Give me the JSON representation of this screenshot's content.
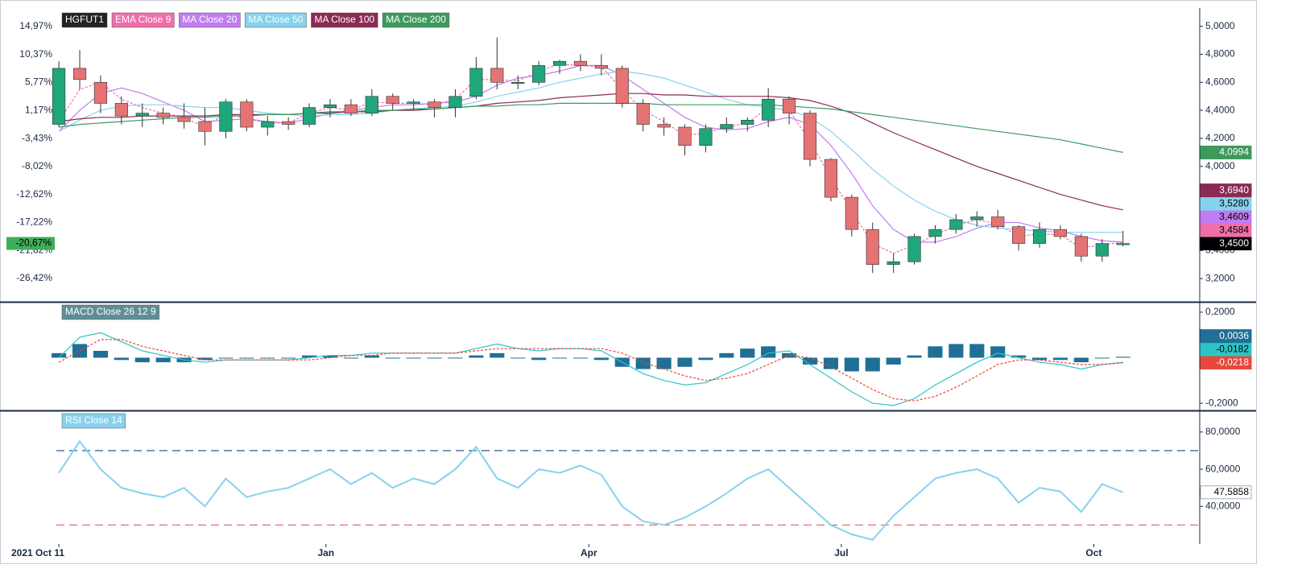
{
  "chart_data": [
    {
      "type": "candlestick",
      "name": "HGFUT1",
      "name_color": "#222222",
      "up_color": "#1fa67a",
      "down_color": "#e57373",
      "open": [
        4.3,
        4.7,
        4.6,
        4.45,
        4.36,
        4.38,
        4.35,
        4.32,
        4.25,
        4.46,
        4.28,
        4.32,
        4.3,
        4.42,
        4.44,
        4.38,
        4.5,
        4.45,
        4.46,
        4.42,
        4.5,
        4.7,
        4.6,
        4.6,
        4.72,
        4.75,
        4.72,
        4.7,
        4.45,
        4.3,
        4.28,
        4.15,
        4.27,
        4.3,
        4.33,
        4.48,
        4.38,
        4.05,
        3.78,
        3.55,
        3.3,
        3.32,
        3.5,
        3.55,
        3.62,
        3.64,
        3.57,
        3.45,
        3.55,
        3.5,
        3.36,
        3.45
      ],
      "high": [
        4.75,
        4.83,
        4.65,
        4.5,
        4.45,
        4.42,
        4.45,
        4.42,
        4.48,
        4.48,
        4.36,
        4.35,
        4.45,
        4.48,
        4.48,
        4.55,
        4.52,
        4.48,
        4.48,
        4.55,
        4.78,
        4.92,
        4.65,
        4.75,
        4.76,
        4.8,
        4.8,
        4.72,
        4.48,
        4.35,
        4.3,
        4.3,
        4.35,
        4.35,
        4.56,
        4.5,
        4.4,
        4.06,
        3.8,
        3.6,
        3.38,
        3.52,
        3.58,
        3.66,
        3.68,
        3.69,
        3.58,
        3.6,
        3.58,
        3.52,
        3.48,
        3.54
      ],
      "low": [
        4.28,
        4.55,
        4.38,
        4.3,
        4.28,
        4.3,
        4.27,
        4.15,
        4.2,
        4.25,
        4.22,
        4.26,
        4.28,
        4.35,
        4.36,
        4.36,
        4.4,
        4.4,
        4.35,
        4.35,
        4.48,
        4.55,
        4.55,
        4.58,
        4.66,
        4.68,
        4.65,
        4.42,
        4.25,
        4.22,
        4.08,
        4.1,
        4.24,
        4.25,
        4.28,
        4.3,
        4.0,
        3.75,
        3.5,
        3.24,
        3.24,
        3.3,
        3.45,
        3.52,
        3.57,
        3.55,
        3.4,
        3.42,
        3.48,
        3.32,
        3.32,
        3.43
      ],
      "close": [
        4.7,
        4.62,
        4.45,
        4.36,
        4.38,
        4.35,
        4.32,
        4.25,
        4.46,
        4.28,
        4.32,
        4.3,
        4.42,
        4.44,
        4.38,
        4.5,
        4.45,
        4.46,
        4.42,
        4.5,
        4.7,
        4.6,
        4.6,
        4.72,
        4.75,
        4.72,
        4.7,
        4.45,
        4.3,
        4.28,
        4.15,
        4.27,
        4.3,
        4.33,
        4.48,
        4.38,
        4.05,
        3.78,
        3.55,
        3.3,
        3.32,
        3.5,
        3.55,
        3.62,
        3.64,
        3.57,
        3.45,
        3.55,
        3.5,
        3.36,
        3.45,
        3.45
      ],
      "last_tag": {
        "value": 3.45,
        "label": "3,4500"
      },
      "y2_tag": {
        "value": -20.67,
        "label": "-20,67%"
      },
      "ylim": [
        3.04,
        5.13
      ],
      "yticks": [
        {
          "value": 5.0,
          "label": "5,0000"
        },
        {
          "value": 4.8,
          "label": "4,8000"
        },
        {
          "value": 4.6,
          "label": "4,6000"
        },
        {
          "value": 4.4,
          "label": "4,4000"
        },
        {
          "value": 4.2,
          "label": "4,2000"
        },
        {
          "value": 4.0,
          "label": "4,0000"
        },
        {
          "value": 3.8,
          "label": "3,8000"
        },
        {
          "value": 3.6,
          "label": "3,6000"
        },
        {
          "value": 3.4,
          "label": "3,4000"
        },
        {
          "value": 3.2,
          "label": "3,2000"
        }
      ],
      "y2lim": [
        -30.12,
        18.0
      ],
      "y2ticks": [
        {
          "value": 14.97,
          "label": "14,97%"
        },
        {
          "value": 10.37,
          "label": "10,37%"
        },
        {
          "value": 5.77,
          "label": "5,77%"
        },
        {
          "value": 1.17,
          "label": "1,17%"
        },
        {
          "value": -3.43,
          "label": "-3,43%"
        },
        {
          "value": -8.02,
          "label": "-8,02%"
        },
        {
          "value": -12.62,
          "label": "-12,62%"
        },
        {
          "value": -17.22,
          "label": "-17,22%"
        },
        {
          "value": -21.82,
          "label": "-21,82%"
        },
        {
          "value": -26.42,
          "label": "-26,42%"
        }
      ],
      "series": [
        {
          "name": "EMA Close 9",
          "color": "#f06fa8",
          "dashed": true,
          "tag": {
            "value": 3.4584,
            "label": "3,4584"
          },
          "values": [
            4.32,
            4.55,
            4.6,
            4.48,
            4.42,
            4.38,
            4.35,
            4.28,
            4.38,
            4.34,
            4.31,
            4.31,
            4.38,
            4.42,
            4.4,
            4.46,
            4.45,
            4.45,
            4.44,
            4.48,
            4.62,
            4.62,
            4.61,
            4.68,
            4.73,
            4.72,
            4.71,
            4.55,
            4.4,
            4.32,
            4.22,
            4.24,
            4.28,
            4.31,
            4.42,
            4.4,
            4.18,
            3.92,
            3.68,
            3.45,
            3.38,
            3.44,
            3.51,
            3.58,
            3.62,
            3.59,
            3.5,
            3.52,
            3.51,
            3.42,
            3.44,
            3.46
          ]
        },
        {
          "name": "MA Close 20",
          "color": "#c07cf0",
          "dashed": false,
          "tag": {
            "value": 3.4609,
            "label": "3,4609"
          },
          "values": [
            4.25,
            4.4,
            4.52,
            4.56,
            4.52,
            4.46,
            4.4,
            4.32,
            4.33,
            4.34,
            4.32,
            4.31,
            4.34,
            4.38,
            4.4,
            4.42,
            4.44,
            4.44,
            4.45,
            4.46,
            4.5,
            4.58,
            4.63,
            4.65,
            4.68,
            4.72,
            4.72,
            4.65,
            4.55,
            4.45,
            4.35,
            4.28,
            4.26,
            4.27,
            4.32,
            4.35,
            4.3,
            4.15,
            3.95,
            3.72,
            3.55,
            3.46,
            3.46,
            3.5,
            3.56,
            3.6,
            3.6,
            3.56,
            3.54,
            3.5,
            3.47,
            3.46
          ]
        },
        {
          "name": "MA Close 50",
          "color": "#86d2ee",
          "dashed": false,
          "tag": {
            "value": 3.528,
            "label": "3,5280"
          },
          "values": [
            4.25,
            4.33,
            4.4,
            4.43,
            4.44,
            4.44,
            4.43,
            4.42,
            4.42,
            4.4,
            4.38,
            4.37,
            4.36,
            4.37,
            4.37,
            4.38,
            4.4,
            4.41,
            4.42,
            4.43,
            4.46,
            4.5,
            4.53,
            4.56,
            4.6,
            4.63,
            4.66,
            4.68,
            4.66,
            4.63,
            4.58,
            4.53,
            4.48,
            4.44,
            4.42,
            4.4,
            4.35,
            4.25,
            4.12,
            3.98,
            3.86,
            3.76,
            3.68,
            3.62,
            3.58,
            3.56,
            3.55,
            3.54,
            3.53,
            3.53,
            3.53,
            3.53
          ]
        },
        {
          "name": "MA Close 100",
          "color": "#8b2a55",
          "dashed": false,
          "tag": {
            "value": 3.694,
            "label": "3,6940"
          },
          "values": [
            4.32,
            4.34,
            4.35,
            4.35,
            4.36,
            4.36,
            4.36,
            4.36,
            4.37,
            4.37,
            4.37,
            4.37,
            4.38,
            4.38,
            4.39,
            4.39,
            4.4,
            4.4,
            4.41,
            4.42,
            4.43,
            4.45,
            4.46,
            4.47,
            4.49,
            4.5,
            4.51,
            4.52,
            4.52,
            4.51,
            4.51,
            4.5,
            4.5,
            4.5,
            4.5,
            4.49,
            4.47,
            4.43,
            4.38,
            4.31,
            4.24,
            4.18,
            4.12,
            4.06,
            4.0,
            3.95,
            3.9,
            3.85,
            3.8,
            3.76,
            3.72,
            3.69
          ]
        },
        {
          "name": "MA Close 200",
          "color": "#3d9a5c",
          "dashed": false,
          "tag": {
            "value": 4.0994,
            "label": "4,0994"
          },
          "values": [
            4.28,
            4.3,
            4.31,
            4.32,
            4.33,
            4.34,
            4.35,
            4.35,
            4.36,
            4.36,
            4.37,
            4.37,
            4.38,
            4.39,
            4.39,
            4.4,
            4.4,
            4.41,
            4.41,
            4.42,
            4.43,
            4.43,
            4.44,
            4.44,
            4.45,
            4.45,
            4.45,
            4.45,
            4.45,
            4.44,
            4.44,
            4.44,
            4.44,
            4.44,
            4.44,
            4.43,
            4.42,
            4.41,
            4.39,
            4.37,
            4.35,
            4.33,
            4.31,
            4.29,
            4.27,
            4.25,
            4.23,
            4.21,
            4.19,
            4.16,
            4.13,
            4.1
          ]
        }
      ]
    },
    {
      "type": "macd",
      "title": "MACD Close 26 12 9",
      "title_color": "#5f8f96",
      "ylim": [
        -0.228,
        0.2386
      ],
      "yticks": [
        {
          "value": 0.2,
          "label": "0,2000"
        },
        {
          "value": -0.2,
          "label": "-0,2000"
        }
      ],
      "series": [
        {
          "style": "bar",
          "color": "#1f6f96",
          "tag": {
            "value": 0.0036,
            "label": "0,0036"
          },
          "values": [
            0.02,
            0.06,
            0.03,
            -0.01,
            -0.02,
            -0.02,
            -0.02,
            -0.01,
            0.0,
            0.0,
            0.0,
            0.0,
            0.01,
            0.01,
            0.0,
            0.01,
            0.0,
            0.0,
            0.0,
            0.0,
            0.01,
            0.02,
            0.0,
            -0.01,
            0.0,
            0.0,
            -0.01,
            -0.04,
            -0.05,
            -0.05,
            -0.04,
            -0.01,
            0.02,
            0.04,
            0.05,
            0.02,
            -0.03,
            -0.05,
            -0.06,
            -0.06,
            -0.03,
            0.01,
            0.05,
            0.06,
            0.06,
            0.05,
            0.01,
            -0.01,
            -0.01,
            -0.02,
            0.0,
            0.004
          ]
        },
        {
          "style": "line",
          "color": "#2ec4c4",
          "tag": {
            "value": -0.0182,
            "label": "-0,0182"
          },
          "values": [
            0.0,
            0.09,
            0.11,
            0.07,
            0.03,
            0.01,
            -0.01,
            -0.02,
            -0.01,
            -0.01,
            -0.01,
            -0.01,
            0.0,
            0.01,
            0.01,
            0.02,
            0.02,
            0.02,
            0.02,
            0.02,
            0.04,
            0.06,
            0.04,
            0.03,
            0.04,
            0.04,
            0.03,
            -0.02,
            -0.07,
            -0.1,
            -0.12,
            -0.11,
            -0.07,
            -0.03,
            0.02,
            0.03,
            -0.03,
            -0.09,
            -0.15,
            -0.2,
            -0.21,
            -0.18,
            -0.12,
            -0.07,
            -0.02,
            0.02,
            0.0,
            -0.02,
            -0.03,
            -0.05,
            -0.03,
            -0.02
          ]
        },
        {
          "style": "dashed",
          "color": "#e8473c",
          "tag": {
            "value": -0.0218,
            "label": "-0,0218"
          },
          "values": [
            -0.02,
            0.03,
            0.08,
            0.08,
            0.05,
            0.03,
            0.01,
            -0.01,
            -0.01,
            -0.01,
            -0.01,
            -0.01,
            -0.01,
            0.0,
            0.01,
            0.01,
            0.02,
            0.02,
            0.02,
            0.02,
            0.03,
            0.04,
            0.04,
            0.04,
            0.04,
            0.04,
            0.04,
            0.02,
            -0.02,
            -0.05,
            -0.08,
            -0.1,
            -0.09,
            -0.07,
            -0.03,
            0.01,
            0.0,
            -0.04,
            -0.09,
            -0.14,
            -0.18,
            -0.19,
            -0.17,
            -0.13,
            -0.08,
            -0.03,
            -0.01,
            -0.01,
            -0.02,
            -0.03,
            -0.03,
            -0.022
          ]
        }
      ]
    },
    {
      "type": "line",
      "title": "RSI Close 14",
      "color": "#86d2ee",
      "values": [
        58,
        75,
        60,
        50,
        47,
        45,
        50,
        40,
        55,
        45,
        48,
        50,
        55,
        60,
        52,
        58,
        50,
        55,
        52,
        60,
        72,
        55,
        50,
        60,
        58,
        62,
        57,
        40,
        32,
        30,
        34,
        40,
        47,
        55,
        60,
        50,
        40,
        30,
        25,
        22,
        35,
        45,
        55,
        58,
        60,
        55,
        42,
        50,
        48,
        37,
        52,
        47.5858
      ],
      "tag": {
        "value": 47.5858,
        "label": "47,5858"
      },
      "ylim": [
        19.8,
        90.75
      ],
      "yticks": [
        {
          "value": 80,
          "label": "80,0000"
        },
        {
          "value": 60,
          "label": "60,0000"
        },
        {
          "value": 40,
          "label": "40,0000"
        }
      ],
      "hlines": [
        {
          "value": 70,
          "color": "#2a5a8a"
        },
        {
          "value": 30,
          "color": "#e06060"
        }
      ],
      "xlim": [
        -0.12,
        54.6
      ],
      "xticks": [
        {
          "value": 0,
          "label": "2021 Oct 11"
        },
        {
          "value": 12.8,
          "label": "Jan"
        },
        {
          "value": 25.4,
          "label": "Apr"
        },
        {
          "value": 37.5,
          "label": "Jul"
        },
        {
          "value": 49.6,
          "label": "Oct"
        }
      ]
    }
  ]
}
